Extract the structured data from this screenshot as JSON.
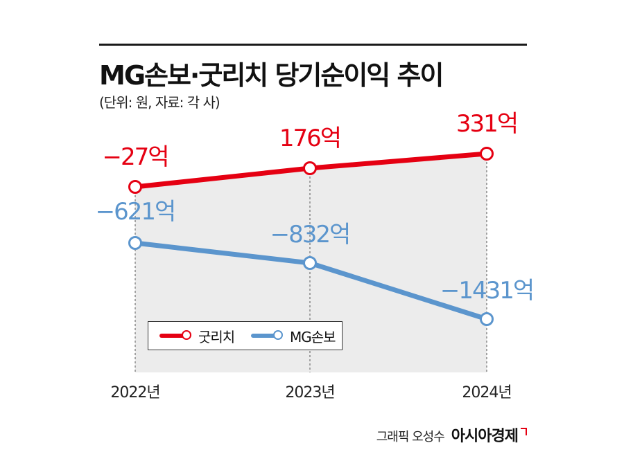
{
  "header": {
    "title": "MG손보·굿리치 당기순이익 추이",
    "subtitle": "(단위: 원, 자료: 각 사)"
  },
  "legend": {
    "items": [
      {
        "label": "굿리치",
        "color": "#e50012"
      },
      {
        "label": "MG손보",
        "color": "#5b95cd"
      }
    ]
  },
  "footer": {
    "credit": "그래픽 오성수",
    "brand": "아시아경제"
  },
  "chart_data": {
    "type": "line",
    "x": [
      "2022년",
      "2023년",
      "2024년"
    ],
    "series": [
      {
        "name": "굿리치",
        "values": [
          -27,
          176,
          331
        ],
        "labels": [
          "−27억",
          "176억",
          "331억"
        ],
        "color": "#e50012"
      },
      {
        "name": "MG손보",
        "values": [
          -621,
          -832,
          -1431
        ],
        "labels": [
          "−621억",
          "−832억",
          "−1431억"
        ],
        "color": "#5b95cd"
      }
    ],
    "grid": false,
    "legend_position": "bottom-left",
    "shading": "#ececec"
  }
}
